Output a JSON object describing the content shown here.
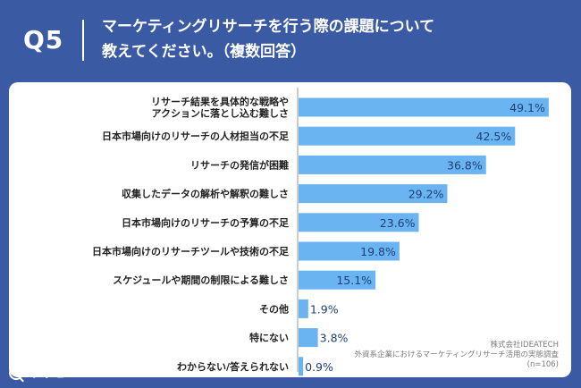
{
  "header": {
    "question_label": "Q5",
    "title_line1": "マーケティングリサーチを行う際の課題について",
    "title_line2": "教えてください。（複数回答）"
  },
  "source": {
    "line1": "株式会社IDEATECH",
    "line2": "外資系企業におけるマーケティングリサーチ活用の実態調査",
    "line3": "(n=106)"
  },
  "logo": {
    "text": "リサピー",
    "icon": "search-icon"
  },
  "colors": {
    "bar": "#6ab4f1",
    "background": "#3b5aa4"
  },
  "chart_data": {
    "type": "bar",
    "orientation": "horizontal",
    "categories": [
      [
        "リサーチ結果を具体的な戦略や",
        "アクションに落とし込む難しさ"
      ],
      [
        "日本市場向けのリサーチの人材担当の不足"
      ],
      [
        "リサーチの発信が困難"
      ],
      [
        "収集したデータの解析や解釈の難しさ"
      ],
      [
        "日本市場向けのリサーチの予算の不足"
      ],
      [
        "日本市場向けのリサーチツールや技術の不足"
      ],
      [
        "スケジュールや期間の制限による難しさ"
      ],
      [
        "その他"
      ],
      [
        "特にない"
      ],
      [
        "わからない/答えられない"
      ]
    ],
    "values": [
      49.1,
      42.5,
      36.8,
      29.2,
      23.6,
      19.8,
      15.1,
      1.9,
      3.8,
      0.9
    ],
    "labels": [
      "49.1%",
      "42.5%",
      "36.8%",
      "29.2%",
      "23.6%",
      "19.8%",
      "15.1%",
      "1.9%",
      "3.8%",
      "0.9%"
    ],
    "xlim": [
      0,
      50
    ],
    "grid": false,
    "legend": "none"
  }
}
